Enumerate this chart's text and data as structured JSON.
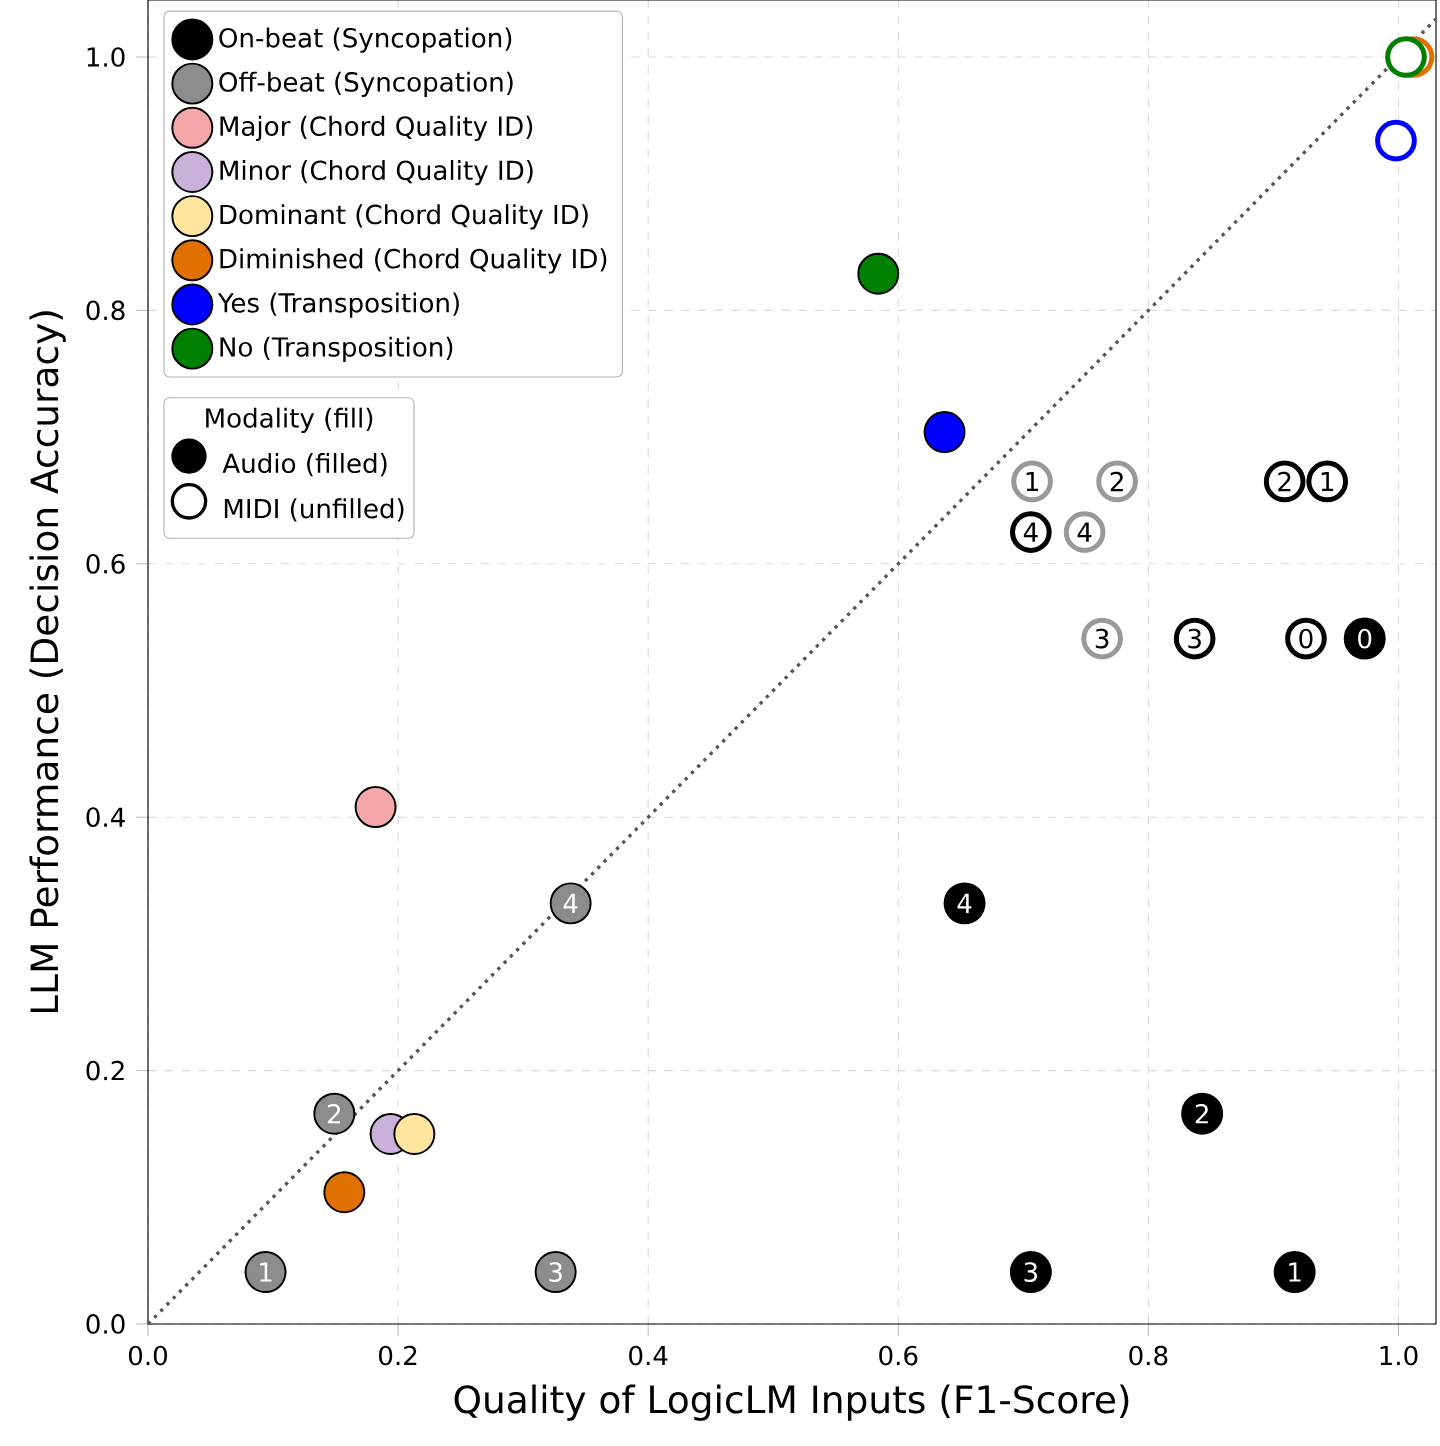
{
  "chart_data": {
    "type": "scatter",
    "xlabel": "Quality of LogicLM Inputs (F1-Score)",
    "ylabel": "LLM Performance (Decision Accuracy)",
    "xlim": [
      0,
      1.03
    ],
    "ylim": [
      0,
      1.045
    ],
    "xticks": [
      {
        "value": 0,
        "label": "0.0"
      },
      {
        "value": 0.2,
        "label": "0.2"
      },
      {
        "value": 0.4,
        "label": "0.4"
      },
      {
        "value": 0.6,
        "label": "0.6"
      },
      {
        "value": 0.8,
        "label": "0.8"
      },
      {
        "value": 1.0,
        "label": "1.0"
      }
    ],
    "yticks": [
      {
        "value": 0,
        "label": "0.0"
      },
      {
        "value": 0.2,
        "label": "0.2"
      },
      {
        "value": 0.4,
        "label": "0.4"
      },
      {
        "value": 0.6,
        "label": "0.6"
      },
      {
        "value": 0.8,
        "label": "0.8"
      },
      {
        "value": 1.0,
        "label": "1.0"
      }
    ],
    "grid": true,
    "legend": "top left",
    "marker": "circle",
    "legend_title": "Modality (fill)",
    "annotations": [
      "Audio (filled)",
      "MIDI (unfilled)",
      {
        "text": "0",
        "x": 0.973,
        "y": 0.541
      },
      {
        "text": "1",
        "x": 0.917,
        "y": 0.041
      },
      {
        "text": "2",
        "x": 0.843,
        "y": 0.166
      },
      {
        "text": "3",
        "x": 0.706,
        "y": 0.041
      },
      {
        "text": "4",
        "x": 0.653,
        "y": 0.332
      },
      {
        "text": "1",
        "x": 0.094,
        "y": 0.041
      },
      {
        "text": "2",
        "x": 0.149,
        "y": 0.166
      },
      {
        "text": "3",
        "x": 0.326,
        "y": 0.041
      },
      {
        "text": "4",
        "x": 0.338,
        "y": 0.332
      },
      {
        "text": "0",
        "x": 0.926,
        "y": 0.541
      },
      {
        "text": "1",
        "x": 0.943,
        "y": 0.665
      },
      {
        "text": "2",
        "x": 0.909,
        "y": 0.665
      },
      {
        "text": "3",
        "x": 0.837,
        "y": 0.541
      },
      {
        "text": "4",
        "x": 0.706,
        "y": 0.625
      },
      {
        "text": "1",
        "x": 0.707,
        "y": 0.665
      },
      {
        "text": "2",
        "x": 0.775,
        "y": 0.665
      },
      {
        "text": "3",
        "x": 0.763,
        "y": 0.541
      },
      {
        "text": "4",
        "x": 0.749,
        "y": 0.625
      }
    ],
    "series": [
      {
        "name": "On-beat (Syncopation)",
        "color": "#000000",
        "x": [
          0.973,
          0.917,
          0.843,
          0.706,
          0.653
        ],
        "values": [
          0.541,
          0.041,
          0.166,
          0.041,
          0.332
        ]
      },
      {
        "name": "Off-beat (Syncopation)",
        "color": "#8c8c8c",
        "x": [
          0.094,
          0.149,
          0.326,
          0.338
        ],
        "values": [
          0.041,
          0.166,
          0.041,
          0.332
        ]
      },
      {
        "name": "Major (Chord Quality ID)",
        "color": "#f4a6a8",
        "x": [
          0.182
        ],
        "values": [
          0.408
        ]
      },
      {
        "name": "Minor (Chord Quality ID)",
        "color": "#c9b1d9",
        "x": [
          0.194
        ],
        "values": [
          0.15
        ]
      },
      {
        "name": "Dominant (Chord Quality ID)",
        "color": "#ffe59e",
        "x": [
          0.213
        ],
        "values": [
          0.15
        ]
      },
      {
        "name": "Diminished (Chord Quality ID)",
        "color": "#e07000",
        "x": [
          0.157
        ],
        "values": [
          0.104
        ]
      },
      {
        "name": "Yes (Transposition)",
        "color": "#0000ff",
        "x": [
          0.637
        ],
        "values": [
          0.704
        ]
      },
      {
        "name": "No (Transposition)",
        "color": "#008000",
        "x": [
          0.584
        ],
        "values": [
          0.829
        ]
      },
      {
        "color": "#000000",
        "colors": [
          "#ffffff",
          "#ffffff",
          "#ffffff",
          "#ffffff",
          "#ffffff"
        ],
        "x": [
          0.926,
          0.943,
          0.909,
          0.837,
          0.706
        ],
        "values": [
          0.541,
          0.665,
          0.665,
          0.541,
          0.625
        ]
      },
      {
        "color": "#999999",
        "colors": [
          "#ffffff",
          "#ffffff",
          "#ffffff",
          "#ffffff"
        ],
        "x": [
          0.707,
          0.775,
          0.763,
          0.749
        ],
        "values": [
          0.665,
          0.665,
          0.541,
          0.625
        ]
      },
      {
        "color": "#e07000",
        "colors": [
          "#ffffff"
        ],
        "x": [
          1.012
        ],
        "values": [
          1.0
        ]
      },
      {
        "color": "#008000",
        "colors": [
          "#ffffff"
        ],
        "x": [
          1.006
        ],
        "values": [
          1.0
        ]
      },
      {
        "color": "#0000ff",
        "colors": [
          "#ffffff"
        ],
        "x": [
          0.998
        ],
        "values": [
          0.934
        ]
      },
      {
        "type": "line",
        "marker": "none",
        "color": "#555555",
        "line_style": "dotted",
        "x": [
          0,
          1.03
        ],
        "values": [
          0,
          1.03
        ]
      }
    ]
  }
}
